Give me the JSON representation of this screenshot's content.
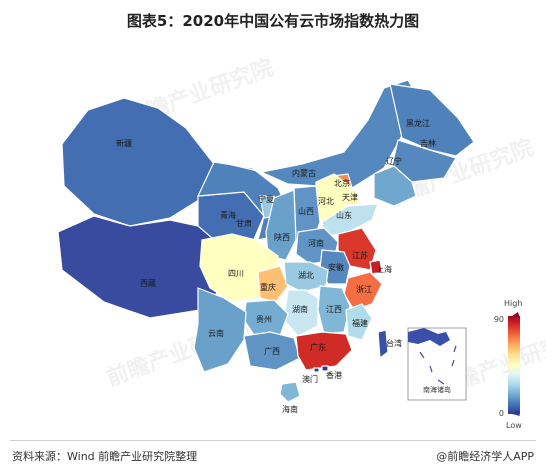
{
  "title": "图表5：2020年中国公有云市场指数热力图",
  "legend": {
    "high_label": "High",
    "low_label": "Low",
    "max_value": "90",
    "min_value": "0",
    "scale_min": 0,
    "scale_max": 90,
    "gradient": [
      "#313695",
      "#4575b4",
      "#74add1",
      "#abd9e9",
      "#e0f3f8",
      "#ffffbf",
      "#fee090",
      "#fdae61",
      "#f46d43",
      "#d73027",
      "#a50026"
    ]
  },
  "provinces": [
    {
      "name": "新疆",
      "value": 8
    },
    {
      "name": "西藏",
      "value": 3
    },
    {
      "name": "青海",
      "value": 8
    },
    {
      "name": "甘肃",
      "value": 11
    },
    {
      "name": "宁夏",
      "value": 24
    },
    {
      "name": "内蒙古",
      "value": 12
    },
    {
      "name": "黑龙江",
      "value": 11
    },
    {
      "name": "吉林",
      "value": 12
    },
    {
      "name": "辽宁",
      "value": 17
    },
    {
      "name": "北京",
      "value": 68
    },
    {
      "name": "天津",
      "value": 48
    },
    {
      "name": "河北",
      "value": 45
    },
    {
      "name": "山西",
      "value": 14
    },
    {
      "name": "山东",
      "value": 30
    },
    {
      "name": "陕西",
      "value": 16
    },
    {
      "name": "河南",
      "value": 14
    },
    {
      "name": "江苏",
      "value": 80
    },
    {
      "name": "上海",
      "value": 84
    },
    {
      "name": "安徽",
      "value": 12
    },
    {
      "name": "浙江",
      "value": 72
    },
    {
      "name": "四川",
      "value": 45
    },
    {
      "name": "重庆",
      "value": 60
    },
    {
      "name": "湖北",
      "value": 24
    },
    {
      "name": "湖南",
      "value": 32
    },
    {
      "name": "江西",
      "value": 20
    },
    {
      "name": "福建",
      "value": 28
    },
    {
      "name": "贵州",
      "value": 18
    },
    {
      "name": "云南",
      "value": 16
    },
    {
      "name": "广西",
      "value": 14
    },
    {
      "name": "广东",
      "value": 82
    },
    {
      "name": "海南",
      "value": 20
    },
    {
      "name": "台湾",
      "value": 4
    },
    {
      "name": "香港",
      "value": 0
    },
    {
      "name": "澳门",
      "value": 0
    }
  ],
  "inset_label": "南海诸岛",
  "watermark": "前瞻产业研究院",
  "footer": {
    "source": "资料来源：Wind  前瞻产业研究院整理",
    "brand": "@前瞻经济学人APP"
  }
}
